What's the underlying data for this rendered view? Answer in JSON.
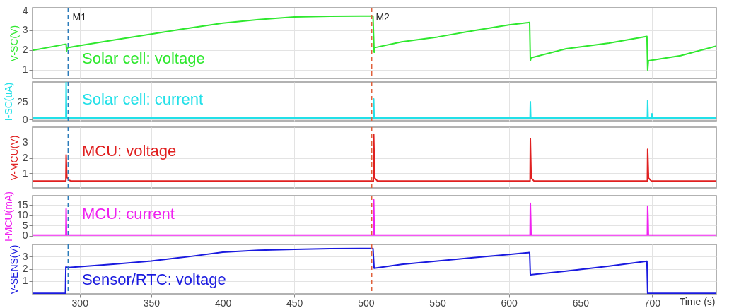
{
  "chart_data": [
    {
      "type": "line",
      "ylabel": "V-SC(V)",
      "xlim": [
        267,
        745
      ],
      "xticks": [
        300,
        350,
        400,
        450,
        500,
        550,
        600,
        650,
        700
      ],
      "ylim": [
        0.55,
        4.15
      ],
      "yticks": [
        1,
        2,
        3,
        4
      ],
      "grid": true,
      "tick_labels": "y",
      "ref_lines": [
        {
          "axis": "x",
          "value": 292,
          "label": "M1",
          "color": "#2b7bba",
          "line_style": "dashed"
        },
        {
          "axis": "x",
          "value": 504,
          "label": "M2",
          "color": "#e0603a",
          "line_style": "dashed"
        }
      ],
      "series": [
        {
          "name": "Solar cell: voltage",
          "color": "#2ee82e",
          "x": [
            267,
            290.5,
            290.8,
            291.5,
            300,
            325,
            350,
            375,
            400,
            425,
            450,
            475,
            500,
            505,
            505.8,
            506.3,
            525,
            550,
            575,
            600,
            614.5,
            615,
            615.5,
            640,
            670,
            696.5,
            697,
            697.5,
            720,
            745
          ],
          "values": [
            1.98,
            2.3,
            1.95,
            2.12,
            2.22,
            2.52,
            2.81,
            3.1,
            3.37,
            3.55,
            3.68,
            3.72,
            3.73,
            3.73,
            1.88,
            2.12,
            2.41,
            2.66,
            2.98,
            3.28,
            3.4,
            1.45,
            1.6,
            2.06,
            2.35,
            2.69,
            0.98,
            1.45,
            1.71,
            2.2
          ]
        }
      ]
    },
    {
      "type": "line",
      "ylabel": "I-SC(uA)",
      "xlim": [
        267,
        745
      ],
      "xticks": [
        300,
        350,
        400,
        450,
        500,
        550,
        600,
        650,
        700
      ],
      "ylim": [
        -2,
        53
      ],
      "yticks": [
        0,
        25
      ],
      "grid": true,
      "tick_labels": "y",
      "ref_lines": [
        {
          "axis": "x",
          "value": 292,
          "label": null,
          "color": "#2b7bba",
          "line_style": "dashed"
        },
        {
          "axis": "x",
          "value": 504,
          "label": null,
          "color": "#e0603a",
          "line_style": "dashed"
        }
      ],
      "series": [
        {
          "name": "Solar cell: current",
          "color": "#22e0e8",
          "x": [
            267,
            290.3,
            290.5,
            290.8,
            505.3,
            505.5,
            505.8,
            614.8,
            615,
            615.3,
            696.8,
            697,
            697.3,
            699.8,
            700,
            700.3,
            745
          ],
          "values": [
            2,
            2,
            53,
            2,
            2,
            29,
            2,
            2,
            25,
            2,
            2,
            27,
            2,
            2,
            8,
            2,
            2
          ]
        }
      ]
    },
    {
      "type": "line",
      "ylabel": "V-MCU(V)",
      "xlim": [
        267,
        745
      ],
      "xticks": [
        300,
        350,
        400,
        450,
        500,
        550,
        600,
        650,
        700
      ],
      "ylim": [
        0.05,
        4
      ],
      "yticks": [
        1,
        2,
        3
      ],
      "grid": true,
      "tick_labels": "y",
      "ref_lines": [
        {
          "axis": "x",
          "value": 292,
          "label": null,
          "color": "#2b7bba",
          "line_style": "dashed"
        },
        {
          "axis": "x",
          "value": 504,
          "label": null,
          "color": "#e0603a",
          "line_style": "dashed"
        }
      ],
      "series": [
        {
          "name": "MCU: voltage",
          "color": "#e02020",
          "x": [
            267,
            290.3,
            290.5,
            291,
            292.5,
            294,
            505.3,
            505.5,
            506.2,
            508,
            614.8,
            615,
            615.6,
            617.5,
            696.8,
            697,
            697.6,
            699.5,
            745
          ],
          "values": [
            0.5,
            0.5,
            2.2,
            0.75,
            0.55,
            0.5,
            0.5,
            3.54,
            0.7,
            0.5,
            0.5,
            3.25,
            0.7,
            0.5,
            0.5,
            2.57,
            0.7,
            0.5,
            0.5
          ]
        }
      ]
    },
    {
      "type": "line",
      "ylabel": "I-MCU(mA)",
      "xlim": [
        267,
        745
      ],
      "xticks": [
        300,
        350,
        400,
        450,
        500,
        550,
        600,
        650,
        700
      ],
      "ylim": [
        -0.5,
        19.5
      ],
      "yticks": [
        0,
        5,
        10,
        15
      ],
      "grid": true,
      "tick_labels": "y",
      "ref_lines": [
        {
          "axis": "x",
          "value": 292,
          "label": null,
          "color": "#2b7bba",
          "line_style": "dashed"
        },
        {
          "axis": "x",
          "value": 504,
          "label": null,
          "color": "#e0603a",
          "line_style": "dashed"
        }
      ],
      "series": [
        {
          "name": "MCU: current",
          "color": "#f020f0",
          "x": [
            267,
            290.3,
            290.5,
            290.8,
            505.3,
            505.5,
            505.8,
            506,
            614.8,
            615,
            615.3,
            615.5,
            696.8,
            697,
            697.3,
            697.5,
            745
          ],
          "values": [
            0.3,
            0.3,
            13,
            0.3,
            0.3,
            17.5,
            5.5,
            0.3,
            0.3,
            15.8,
            7.5,
            0.3,
            0.3,
            14.4,
            7.5,
            0.3,
            0.3
          ]
        }
      ]
    },
    {
      "type": "line",
      "ylabel": "V-SENS(V)",
      "xlabel": "Time (s)",
      "xlim": [
        267,
        745
      ],
      "xticks": [
        300,
        350,
        400,
        450,
        500,
        550,
        600,
        650,
        700
      ],
      "ylim": [
        -0.05,
        4
      ],
      "yticks": [
        1,
        2,
        3
      ],
      "grid": true,
      "ref_lines": [
        {
          "axis": "x",
          "value": 292,
          "label": null,
          "color": "#2b7bba",
          "line_style": "dashed"
        },
        {
          "axis": "x",
          "value": 504,
          "label": null,
          "color": "#e0603a",
          "line_style": "dashed"
        }
      ],
      "series": [
        {
          "name": "Sensor/RTC: voltage",
          "color": "#1a1adf",
          "x": [
            267,
            290,
            290.3,
            292,
            325,
            350,
            375,
            400,
            425,
            450,
            475,
            505,
            505.8,
            525,
            550,
            575,
            600,
            614.5,
            615,
            640,
            670,
            696.5,
            697,
            745
          ],
          "values": [
            0,
            0,
            2.15,
            2.1,
            2.4,
            2.64,
            2.98,
            3.36,
            3.52,
            3.6,
            3.66,
            3.67,
            2.05,
            2.36,
            2.64,
            2.91,
            3.18,
            3.33,
            1.51,
            1.82,
            2.22,
            2.62,
            0,
            0
          ]
        }
      ]
    }
  ]
}
